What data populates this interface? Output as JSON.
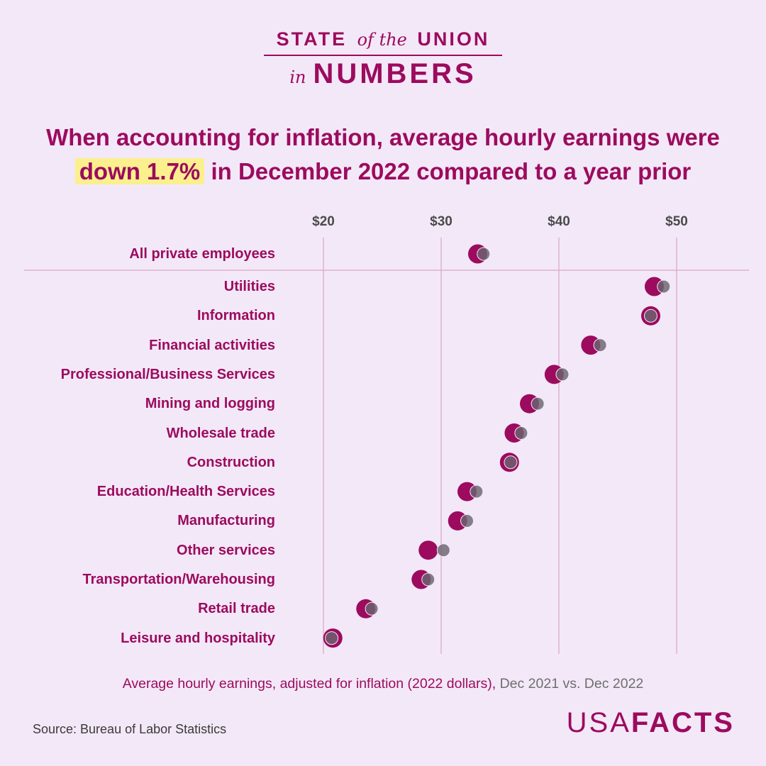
{
  "brand": {
    "line1_a": "STATE",
    "line1_b": "of the",
    "line1_c": "UNION",
    "line2_a": "in",
    "line2_b": "NUMBERS"
  },
  "headline": {
    "before": "When accounting for inflation, average hourly earnings were",
    "highlight": "down 1.7%",
    "after": " in December 2022 compared to a year prior"
  },
  "colors": {
    "accent": "#9c0b5e",
    "prior_dot": "#6b6470",
    "background": "#f3e8f8",
    "highlight": "#fbf08d"
  },
  "chart_data": {
    "type": "scatter",
    "subtype": "dot-plot (dumbbell)",
    "title": "Average hourly earnings, adjusted for inflation (2022 dollars)",
    "xlabel": "Average hourly earnings, adjusted for inflation (2022 dollars)",
    "xlim": [
      20,
      50
    ],
    "x_ticks": [
      20,
      30,
      40,
      50
    ],
    "x_tick_labels": [
      "$20",
      "$30",
      "$40",
      "$50"
    ],
    "series": [
      {
        "name": "Dec 2022",
        "color": "#9c0b5e"
      },
      {
        "name": "Dec 2021",
        "color": "#6b6470"
      }
    ],
    "categories": [
      "All private employees",
      "Utilities",
      "Information",
      "Financial activities",
      "Professional/Business Services",
      "Mining and logging",
      "Wholesale trade",
      "Construction",
      "Education/Health Services",
      "Manufacturing",
      "Other services",
      "Transportation/Warehousing",
      "Retail trade",
      "Leisure and hospitality"
    ],
    "dec_2022": [
      33.1,
      48.1,
      47.8,
      42.7,
      39.6,
      37.5,
      36.2,
      35.8,
      32.2,
      31.4,
      28.9,
      28.3,
      23.6,
      20.8
    ],
    "dec_2021": [
      33.6,
      48.9,
      47.8,
      43.5,
      40.3,
      38.2,
      36.8,
      35.9,
      33.0,
      32.2,
      30.2,
      28.9,
      24.1,
      20.7
    ]
  },
  "caption": {
    "main": "Average hourly earnings, adjusted for inflation (2022 dollars),",
    "compare": " Dec 2021 vs. Dec 2022"
  },
  "source": "Source: Bureau of Labor Statistics",
  "logo": {
    "thin": "USA",
    "bold": "FACTS"
  }
}
